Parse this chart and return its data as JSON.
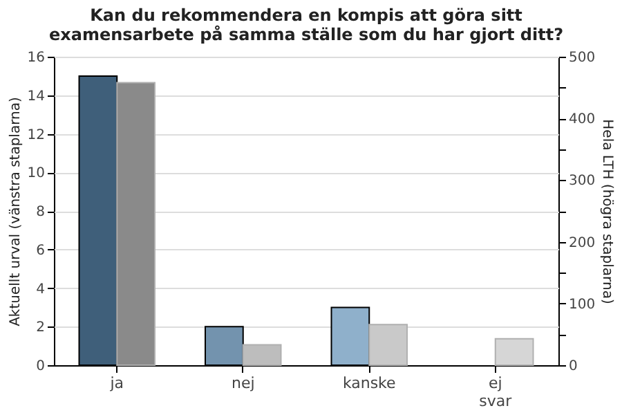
{
  "chart_data": {
    "type": "bar",
    "title": "Kan du rekommendera en kompis att göra sitt examensarbete på samma ställe som du har gjort ditt?",
    "categories": [
      "ja",
      "nej",
      "kanske",
      "ej svar"
    ],
    "ylabel": "Aktuellt urval (vänstra staplarna)",
    "y2label": "Hela LTH (högra staplarna)",
    "series": [
      {
        "colors": [
          "#3f5f7a",
          "#7393ae",
          "#8fb0cb",
          "#8fb0cb"
        ],
        "values": [
          15,
          2,
          3,
          null
        ]
      },
      {
        "colors": [
          "#8a8a8a",
          "#bdbdbd",
          "#c9c9c9",
          "#d6d6d6"
        ],
        "values": [
          458,
          33,
          66,
          43
        ],
        "axis": "y2"
      }
    ],
    "ylim": [
      0,
      16
    ],
    "yticks": [
      0,
      2,
      4,
      6,
      8,
      10,
      12,
      14,
      16
    ],
    "y2lim": [
      0,
      500
    ],
    "y2ticks": [
      0,
      {
        "value": 50,
        "label": null
      },
      100,
      {
        "value": 150,
        "label": null
      },
      200,
      {
        "value": 250,
        "label": null
      },
      300,
      {
        "value": 350,
        "label": null
      },
      400,
      {
        "value": 450,
        "label": null
      },
      500
    ],
    "grid": "y"
  }
}
